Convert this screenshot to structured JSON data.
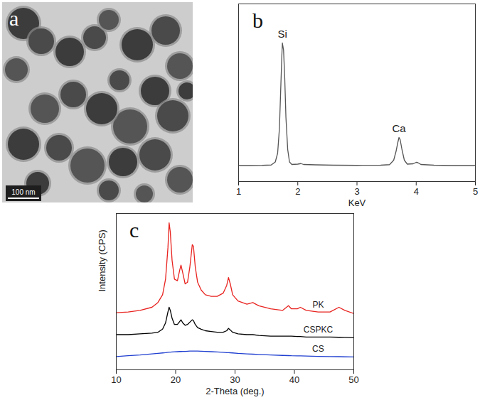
{
  "chart_data": [
    {
      "type": "image",
      "panel": "a",
      "scale_bar": "100 nm"
    },
    {
      "type": "line",
      "panel": "b",
      "x_label": "KeV",
      "x": [
        1.0,
        1.2,
        1.4,
        1.55,
        1.62,
        1.66,
        1.69,
        1.71,
        1.73,
        1.74,
        1.76,
        1.78,
        1.8,
        1.83,
        1.86,
        1.9,
        2.0,
        2.05,
        2.1,
        2.3,
        2.6,
        3.0,
        3.4,
        3.55,
        3.62,
        3.66,
        3.69,
        3.71,
        3.73,
        3.76,
        3.8,
        3.85,
        3.95,
        4.0,
        4.03,
        4.08,
        4.3,
        4.6,
        5.0
      ],
      "series": [
        {
          "color": "#555555",
          "values": [
            9.0,
            9.0,
            9.1,
            9.3,
            11,
            16,
            30,
            50,
            70,
            78,
            74,
            58,
            36,
            18,
            11,
            9.6,
            9.8,
            10.1,
            9.6,
            9.4,
            9.2,
            9.1,
            9.2,
            9.5,
            12,
            17,
            22,
            24.8,
            23.5,
            18,
            12,
            9.8,
            10,
            10.8,
            10.6,
            9.6,
            9.2,
            9.0,
            9.0
          ]
        }
      ],
      "annotations": [
        {
          "text": "Si",
          "x": 1.74
        },
        {
          "text": "Ca",
          "x": 3.71
        }
      ],
      "xlim": [
        1,
        5
      ],
      "xticks": [
        1,
        2,
        3,
        4,
        5
      ],
      "ylim": [
        0,
        100
      ],
      "yticks": [],
      "tick_labels": "x"
    },
    {
      "type": "line",
      "panel": "c",
      "x_label": "2-Theta (deg.)",
      "y_label": "Intensity (CPS)",
      "x": [
        10,
        12,
        14,
        16,
        17,
        17.8,
        18.3,
        18.7,
        18.9,
        19.1,
        19.4,
        19.8,
        20.3,
        20.7,
        20.9,
        21.2,
        21.6,
        22.0,
        22.4,
        22.8,
        23.0,
        23.3,
        23.7,
        24.3,
        25,
        26,
        27,
        28,
        28.6,
        28.9,
        29.2,
        29.6,
        30.5,
        32,
        33,
        34,
        36,
        38,
        39,
        39.5,
        40.5,
        41,
        42,
        44,
        46,
        47.5,
        48.5,
        50
      ],
      "series": [
        {
          "name": "PK",
          "color": "#e8231f",
          "values": [
            36.5,
            37,
            38,
            40,
            43,
            48,
            58,
            78,
            94,
            88,
            70,
            58,
            57,
            64,
            67,
            62,
            55,
            56,
            66,
            80,
            79,
            66,
            56,
            51,
            48,
            47,
            47,
            49,
            54,
            59,
            55,
            48,
            44,
            42,
            43,
            41,
            39,
            38,
            41,
            39,
            39,
            40,
            38,
            37,
            37,
            40,
            38,
            36
          ]
        },
        {
          "name": "CSPKC",
          "color": "#000000",
          "values": [
            22.5,
            22.5,
            23,
            23.5,
            24,
            26,
            30,
            37,
            40,
            38,
            33,
            29,
            29,
            31,
            32,
            30,
            28.5,
            29,
            30.5,
            32,
            31.5,
            29,
            27,
            26,
            25,
            24.5,
            24,
            24,
            25,
            26.5,
            25.5,
            24,
            23,
            22.5,
            22.5,
            22,
            21.5,
            21.5,
            21.5,
            21.5,
            21.3,
            21.3,
            21,
            21,
            21,
            20.8,
            20.7,
            20.5
          ]
        },
        {
          "name": "CS",
          "color": "#1f3fd0",
          "values": [
            8.5,
            9,
            9.5,
            10.2,
            10.5,
            10.8,
            11,
            11.2,
            11.3,
            11.3,
            11.4,
            11.5,
            11.6,
            11.7,
            11.7,
            11.8,
            11.8,
            11.9,
            12,
            12,
            12,
            12,
            12,
            11.9,
            11.8,
            11.6,
            11.4,
            11.2,
            11,
            11,
            10.9,
            10.8,
            10.5,
            10.2,
            10,
            9.8,
            9.5,
            9.2,
            9.1,
            9,
            8.9,
            8.9,
            8.8,
            8.6,
            8.5,
            8.4,
            8.3,
            8.2
          ]
        }
      ],
      "xlim": [
        10,
        50
      ],
      "xticks": [
        10,
        20,
        30,
        40,
        50
      ],
      "ylim": [
        0,
        100
      ],
      "yticks": [],
      "tick_labels": "x"
    }
  ]
}
